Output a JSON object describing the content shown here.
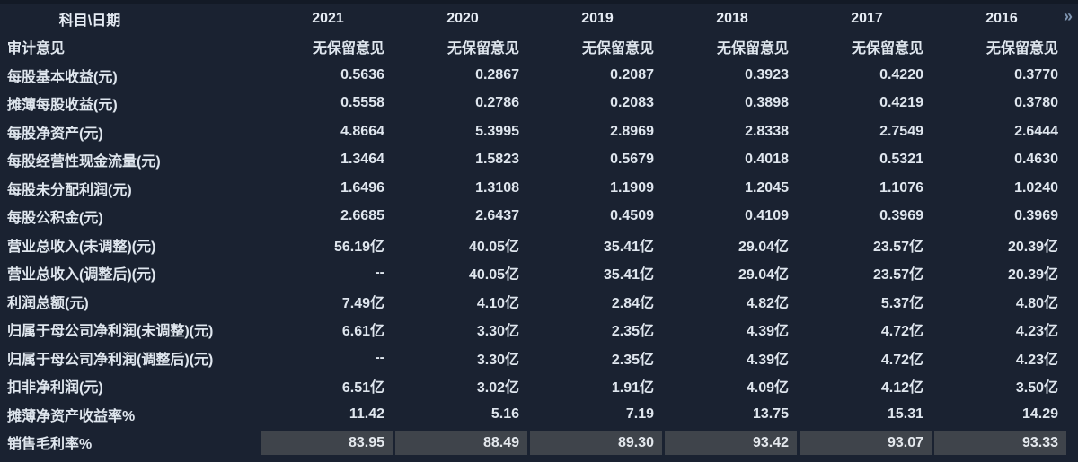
{
  "colors": {
    "background": "#1a2231",
    "top_edge": "#131a26",
    "text": "#dfe6ee",
    "highlight_cell_bg": "#3f444b",
    "expand_icon": "#7e94b0"
  },
  "table": {
    "corner_label": "科目\\日期",
    "expand_icon": "»",
    "years": [
      "2021",
      "2020",
      "2019",
      "2018",
      "2017",
      "2016"
    ],
    "rows": [
      {
        "label": "审计意见",
        "values": [
          "无保留意见",
          "无保留意见",
          "无保留意见",
          "无保留意见",
          "无保留意见",
          "无保留意见"
        ],
        "highlight": false
      },
      {
        "label": "每股基本收益(元)",
        "values": [
          "0.5636",
          "0.2867",
          "0.2087",
          "0.3923",
          "0.4220",
          "0.3770"
        ],
        "highlight": false
      },
      {
        "label": "摊薄每股收益(元)",
        "values": [
          "0.5558",
          "0.2786",
          "0.2083",
          "0.3898",
          "0.4219",
          "0.3780"
        ],
        "highlight": false
      },
      {
        "label": "每股净资产(元)",
        "values": [
          "4.8664",
          "5.3995",
          "2.8969",
          "2.8338",
          "2.7549",
          "2.6444"
        ],
        "highlight": false
      },
      {
        "label": "每股经营性现金流量(元)",
        "values": [
          "1.3464",
          "1.5823",
          "0.5679",
          "0.4018",
          "0.5321",
          "0.4630"
        ],
        "highlight": false
      },
      {
        "label": "每股未分配利润(元)",
        "values": [
          "1.6496",
          "1.3108",
          "1.1909",
          "1.2045",
          "1.1076",
          "1.0240"
        ],
        "highlight": false
      },
      {
        "label": "每股公积金(元)",
        "values": [
          "2.6685",
          "2.6437",
          "0.4509",
          "0.4109",
          "0.3969",
          "0.3969"
        ],
        "highlight": false
      },
      {
        "label": "营业总收入(未调整)(元)",
        "values": [
          "56.19亿",
          "40.05亿",
          "35.41亿",
          "29.04亿",
          "23.57亿",
          "20.39亿"
        ],
        "highlight": false
      },
      {
        "label": "营业总收入(调整后)(元)",
        "values": [
          "--",
          "40.05亿",
          "35.41亿",
          "29.04亿",
          "23.57亿",
          "20.39亿"
        ],
        "highlight": false
      },
      {
        "label": "利润总额(元)",
        "values": [
          "7.49亿",
          "4.10亿",
          "2.84亿",
          "4.82亿",
          "5.37亿",
          "4.80亿"
        ],
        "highlight": false
      },
      {
        "label": "归属于母公司净利润(未调整)(元)",
        "values": [
          "6.61亿",
          "3.30亿",
          "2.35亿",
          "4.39亿",
          "4.72亿",
          "4.23亿"
        ],
        "highlight": false
      },
      {
        "label": "归属于母公司净利润(调整后)(元)",
        "values": [
          "--",
          "3.30亿",
          "2.35亿",
          "4.39亿",
          "4.72亿",
          "4.23亿"
        ],
        "highlight": false
      },
      {
        "label": "扣非净利润(元)",
        "values": [
          "6.51亿",
          "3.02亿",
          "1.91亿",
          "4.09亿",
          "4.12亿",
          "3.50亿"
        ],
        "highlight": false
      },
      {
        "label": "摊薄净资产收益率%",
        "values": [
          "11.42",
          "5.16",
          "7.19",
          "13.75",
          "15.31",
          "14.29"
        ],
        "highlight": false
      },
      {
        "label": "销售毛利率%",
        "values": [
          "83.95",
          "88.49",
          "89.30",
          "93.42",
          "93.07",
          "93.33"
        ],
        "highlight": true
      }
    ]
  }
}
